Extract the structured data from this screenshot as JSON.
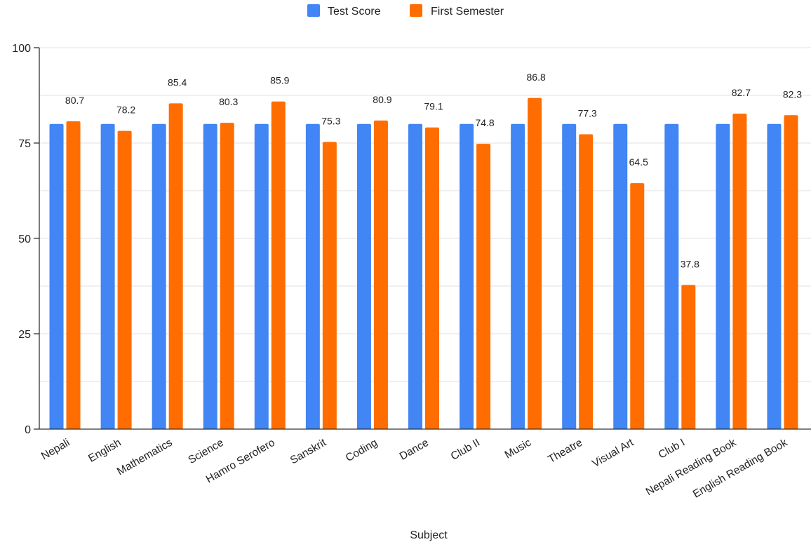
{
  "chart_data": {
    "type": "bar",
    "title": "",
    "xlabel": "Subject",
    "ylabel": "",
    "ylim": [
      0,
      100
    ],
    "yticks": [
      0,
      25,
      50,
      75,
      100
    ],
    "grid": true,
    "legend_position": "top-center",
    "categories": [
      "Nepali",
      "English",
      "Mathematics",
      "Science",
      "Hamro Serofero",
      "Sanskrit",
      "Coding",
      "Dance",
      "Club II",
      "Music",
      "Theatre",
      "Visual Art",
      "Club I",
      "Nepali Reading Book",
      "English Reading Book"
    ],
    "series": [
      {
        "name": "Test Score",
        "color": "#4285f4",
        "values": [
          80,
          80,
          80,
          80,
          80,
          80,
          80,
          80,
          80,
          80,
          80,
          80,
          80,
          80,
          80
        ],
        "show_labels": false
      },
      {
        "name": "First Semester",
        "color": "#ff6d01",
        "values": [
          80.7,
          78.2,
          85.4,
          80.3,
          85.9,
          75.3,
          80.9,
          79.1,
          74.8,
          86.8,
          77.3,
          64.5,
          37.8,
          82.7,
          82.3
        ],
        "show_labels": true
      }
    ]
  }
}
